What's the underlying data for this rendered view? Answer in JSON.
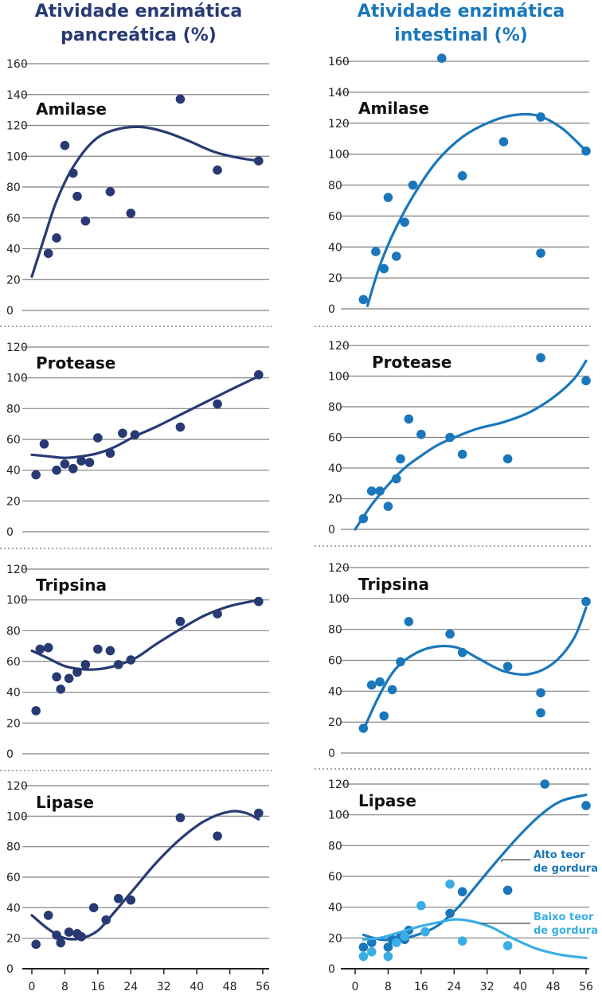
{
  "columns": [
    {
      "title_line1": "Atividade enzimática",
      "title_line2": "pancreática (%)"
    },
    {
      "title_line1": "Atividade enzimática",
      "title_line2": "intestinal (%)"
    }
  ],
  "colors": {
    "pancreatic": "#283a73",
    "intestinal": "#1a77bb",
    "intestinal_low_fat": "#3aaee3"
  },
  "chart_data": [
    {
      "type": "scatter",
      "title": "Amilase",
      "column": "pancreatic",
      "xlim": [
        0,
        56
      ],
      "ylim": [
        0,
        160
      ],
      "yticks": [
        0,
        20,
        40,
        60,
        80,
        100,
        120,
        140,
        160
      ],
      "series": [
        {
          "points": [
            [
              4,
              37
            ],
            [
              6,
              47
            ],
            [
              8,
              107
            ],
            [
              10,
              89
            ],
            [
              11,
              74
            ],
            [
              13,
              58
            ],
            [
              19,
              77
            ],
            [
              24,
              63
            ],
            [
              36,
              137
            ],
            [
              45,
              91
            ],
            [
              55,
              97
            ]
          ],
          "trend": [
            [
              0,
              22
            ],
            [
              3,
              47
            ],
            [
              6,
              71
            ],
            [
              10,
              93
            ],
            [
              15,
              110
            ],
            [
              20,
              117
            ],
            [
              26,
              119
            ],
            [
              32,
              116
            ],
            [
              38,
              110
            ],
            [
              44,
              103
            ],
            [
              50,
              99
            ],
            [
              55,
              97
            ]
          ]
        }
      ]
    },
    {
      "type": "scatter",
      "title": "Amilase",
      "column": "intestinal",
      "xlim": [
        0,
        56
      ],
      "ylim": [
        0,
        160
      ],
      "yticks": [
        0,
        20,
        40,
        60,
        80,
        100,
        120,
        140,
        160
      ],
      "series": [
        {
          "points": [
            [
              2,
              6
            ],
            [
              5,
              37
            ],
            [
              7,
              26
            ],
            [
              8,
              72
            ],
            [
              10,
              34
            ],
            [
              12,
              56
            ],
            [
              14,
              80
            ],
            [
              21,
              162
            ],
            [
              26,
              86
            ],
            [
              36,
              108
            ],
            [
              45,
              124
            ],
            [
              45,
              36
            ],
            [
              56,
              102
            ]
          ],
          "trend": [
            [
              3,
              2
            ],
            [
              6,
              28
            ],
            [
              10,
              53
            ],
            [
              15,
              77
            ],
            [
              20,
              96
            ],
            [
              26,
              111
            ],
            [
              32,
              120
            ],
            [
              38,
              125
            ],
            [
              44,
              125
            ],
            [
              50,
              117
            ],
            [
              56,
              102
            ]
          ]
        }
      ]
    },
    {
      "type": "scatter",
      "title": "Protease",
      "column": "pancreatic",
      "xlim": [
        0,
        56
      ],
      "ylim": [
        0,
        120
      ],
      "yticks": [
        0,
        20,
        40,
        60,
        80,
        100,
        120
      ],
      "series": [
        {
          "points": [
            [
              1,
              37
            ],
            [
              3,
              57
            ],
            [
              6,
              40
            ],
            [
              8,
              44
            ],
            [
              10,
              41
            ],
            [
              12,
              46
            ],
            [
              14,
              45
            ],
            [
              16,
              61
            ],
            [
              19,
              51
            ],
            [
              22,
              64
            ],
            [
              25,
              63
            ],
            [
              36,
              68
            ],
            [
              45,
              83
            ],
            [
              55,
              102
            ]
          ],
          "trend": [
            [
              0,
              50
            ],
            [
              4,
              49
            ],
            [
              8,
              48
            ],
            [
              12,
              49
            ],
            [
              16,
              51
            ],
            [
              20,
              55
            ],
            [
              25,
              62
            ],
            [
              30,
              68
            ],
            [
              36,
              76
            ],
            [
              42,
              84
            ],
            [
              48,
              92
            ],
            [
              55,
              101
            ]
          ]
        }
      ]
    },
    {
      "type": "scatter",
      "title": "Protease",
      "column": "intestinal",
      "xlim": [
        0,
        56
      ],
      "ylim": [
        0,
        120
      ],
      "yticks": [
        0,
        20,
        40,
        60,
        80,
        100,
        120
      ],
      "series": [
        {
          "points": [
            [
              2,
              7
            ],
            [
              4,
              25
            ],
            [
              6,
              25
            ],
            [
              8,
              15
            ],
            [
              10,
              33
            ],
            [
              11,
              46
            ],
            [
              13,
              72
            ],
            [
              16,
              62
            ],
            [
              23,
              60
            ],
            [
              26,
              49
            ],
            [
              37,
              46
            ],
            [
              45,
              112
            ],
            [
              56,
              97
            ]
          ],
          "trend": [
            [
              0,
              0
            ],
            [
              4,
              16
            ],
            [
              8,
              29
            ],
            [
              12,
              40
            ],
            [
              16,
              48
            ],
            [
              20,
              55
            ],
            [
              25,
              61
            ],
            [
              30,
              66
            ],
            [
              36,
              70
            ],
            [
              42,
              76
            ],
            [
              48,
              86
            ],
            [
              53,
              98
            ],
            [
              56,
              110
            ]
          ]
        }
      ]
    },
    {
      "type": "scatter",
      "title": "Tripsina",
      "column": "pancreatic",
      "xlim": [
        0,
        56
      ],
      "ylim": [
        0,
        120
      ],
      "yticks": [
        0,
        20,
        40,
        60,
        80,
        100,
        120
      ],
      "series": [
        {
          "points": [
            [
              1,
              28
            ],
            [
              2,
              68
            ],
            [
              4,
              69
            ],
            [
              6,
              50
            ],
            [
              7,
              42
            ],
            [
              9,
              49
            ],
            [
              11,
              53
            ],
            [
              13,
              58
            ],
            [
              16,
              68
            ],
            [
              19,
              67
            ],
            [
              21,
              58
            ],
            [
              24,
              61
            ],
            [
              36,
              86
            ],
            [
              45,
              91
            ],
            [
              55,
              99
            ]
          ],
          "trend": [
            [
              0,
              67
            ],
            [
              4,
              62
            ],
            [
              8,
              57
            ],
            [
              12,
              55
            ],
            [
              16,
              55
            ],
            [
              20,
              57
            ],
            [
              25,
              62
            ],
            [
              30,
              71
            ],
            [
              36,
              81
            ],
            [
              42,
              90
            ],
            [
              48,
              96
            ],
            [
              55,
              100
            ]
          ]
        }
      ]
    },
    {
      "type": "scatter",
      "title": "Tripsina",
      "column": "intestinal",
      "xlim": [
        0,
        56
      ],
      "ylim": [
        0,
        120
      ],
      "yticks": [
        0,
        20,
        40,
        60,
        80,
        100,
        120
      ],
      "series": [
        {
          "points": [
            [
              2,
              16
            ],
            [
              4,
              44
            ],
            [
              6,
              46
            ],
            [
              7,
              24
            ],
            [
              9,
              41
            ],
            [
              11,
              59
            ],
            [
              13,
              85
            ],
            [
              23,
              77
            ],
            [
              26,
              65
            ],
            [
              37,
              56
            ],
            [
              45,
              39
            ],
            [
              45,
              26
            ],
            [
              56,
              98
            ]
          ],
          "trend": [
            [
              2,
              15
            ],
            [
              6,
              38
            ],
            [
              10,
              55
            ],
            [
              15,
              65
            ],
            [
              20,
              69
            ],
            [
              25,
              68
            ],
            [
              30,
              61
            ],
            [
              36,
              53
            ],
            [
              42,
              51
            ],
            [
              48,
              58
            ],
            [
              53,
              74
            ],
            [
              56,
              94
            ]
          ]
        }
      ]
    },
    {
      "type": "scatter",
      "title": "Lipase",
      "column": "pancreatic",
      "xlim": [
        0,
        56
      ],
      "ylim": [
        0,
        120
      ],
      "yticks": [
        0,
        20,
        40,
        60,
        80,
        100,
        120
      ],
      "xticks": [
        0,
        8,
        16,
        24,
        32,
        40,
        48,
        56
      ],
      "series": [
        {
          "points": [
            [
              1,
              16
            ],
            [
              4,
              35
            ],
            [
              6,
              22
            ],
            [
              7,
              17
            ],
            [
              9,
              24
            ],
            [
              11,
              23
            ],
            [
              12,
              21
            ],
            [
              15,
              40
            ],
            [
              18,
              32
            ],
            [
              21,
              46
            ],
            [
              24,
              45
            ],
            [
              36,
              99
            ],
            [
              45,
              87
            ],
            [
              55,
              102
            ]
          ],
          "trend": [
            [
              0,
              35
            ],
            [
              4,
              26
            ],
            [
              8,
              20
            ],
            [
              12,
              20
            ],
            [
              16,
              25
            ],
            [
              20,
              37
            ],
            [
              25,
              53
            ],
            [
              30,
              69
            ],
            [
              36,
              85
            ],
            [
              42,
              97
            ],
            [
              48,
              103
            ],
            [
              52,
              102
            ],
            [
              55,
              98
            ]
          ]
        }
      ]
    },
    {
      "type": "scatter",
      "title": "Lipase",
      "column": "intestinal",
      "xlim": [
        0,
        56
      ],
      "ylim": [
        0,
        120
      ],
      "yticks": [
        0,
        20,
        40,
        60,
        80,
        100,
        120
      ],
      "xticks": [
        0,
        8,
        16,
        24,
        32,
        40,
        48,
        56
      ],
      "series": [
        {
          "name": "Alto teor de gordura",
          "color": "#1a77bb",
          "points": [
            [
              2,
              14
            ],
            [
              4,
              17
            ],
            [
              8,
              14
            ],
            [
              9,
              19
            ],
            [
              11,
              21
            ],
            [
              12,
              19
            ],
            [
              13,
              25
            ],
            [
              23,
              36
            ],
            [
              26,
              50
            ],
            [
              37,
              51
            ],
            [
              46,
              120
            ],
            [
              56,
              106
            ]
          ],
          "trend": [
            [
              2,
              22
            ],
            [
              6,
              19
            ],
            [
              10,
              19
            ],
            [
              15,
              22
            ],
            [
              20,
              28
            ],
            [
              25,
              40
            ],
            [
              30,
              56
            ],
            [
              35,
              72
            ],
            [
              40,
              87
            ],
            [
              45,
              100
            ],
            [
              50,
              109
            ],
            [
              56,
              113
            ]
          ]
        },
        {
          "name": "Baixo teor de gordura",
          "color": "#3aaee3",
          "points": [
            [
              2,
              8
            ],
            [
              4,
              11
            ],
            [
              8,
              8
            ],
            [
              10,
              17
            ],
            [
              12,
              21
            ],
            [
              16,
              41
            ],
            [
              17,
              24
            ],
            [
              23,
              55
            ],
            [
              26,
              18
            ],
            [
              37,
              15
            ]
          ],
          "trend": [
            [
              2,
              19
            ],
            [
              6,
              20
            ],
            [
              10,
              23
            ],
            [
              15,
              27
            ],
            [
              20,
              30
            ],
            [
              24,
              32
            ],
            [
              28,
              31
            ],
            [
              33,
              27
            ],
            [
              38,
              20
            ],
            [
              44,
              13
            ],
            [
              50,
              9
            ],
            [
              56,
              7
            ]
          ]
        }
      ],
      "annotations": [
        "Alto teor",
        "de gordura",
        "Baixo teor",
        "de gordura"
      ]
    }
  ]
}
